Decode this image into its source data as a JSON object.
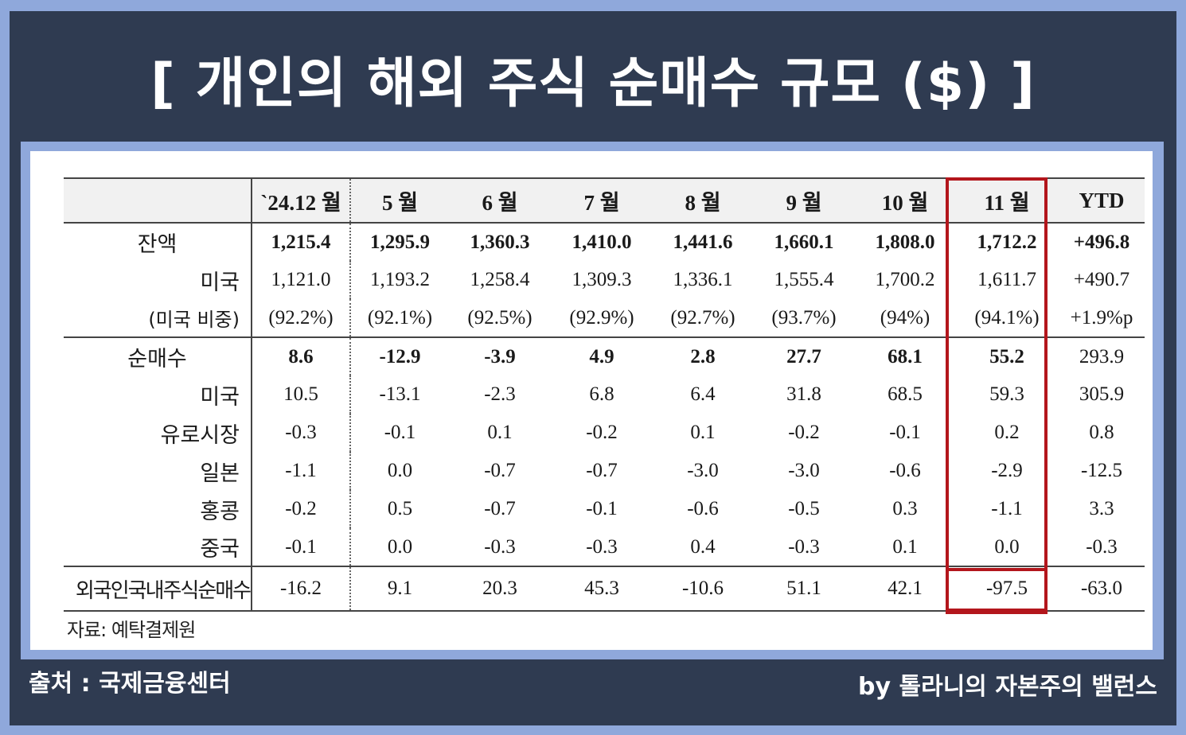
{
  "title": "[ 개인의 해외 주식 순매수 규모 ($) ]",
  "table": {
    "headers": [
      "",
      "`24.12 월",
      "5 월",
      "6 월",
      "7 월",
      "8 월",
      "9 월",
      "10 월",
      "11 월",
      "YTD"
    ],
    "rows": [
      {
        "label": "잔액",
        "style": "main",
        "values": [
          "1,215.4",
          "1,295.9",
          "1,360.3",
          "1,410.0",
          "1,441.6",
          "1,660.1",
          "1,808.0",
          "1,712.2",
          "+496.8"
        ]
      },
      {
        "label": "미국",
        "style": "sub",
        "values": [
          "1,121.0",
          "1,193.2",
          "1,258.4",
          "1,309.3",
          "1,336.1",
          "1,555.4",
          "1,700.2",
          "1,611.7",
          "+490.7"
        ]
      },
      {
        "label": "(미국 비중)",
        "style": "sub-small",
        "values": [
          "(92.2%)",
          "(92.1%)",
          "(92.5%)",
          "(92.9%)",
          "(92.7%)",
          "(93.7%)",
          "(94%)",
          "(94.1%)",
          "+1.9%p"
        ]
      },
      {
        "label": "순매수",
        "style": "main",
        "values": [
          "8.6",
          "-12.9",
          "-3.9",
          "4.9",
          "2.8",
          "27.7",
          "68.1",
          "55.2",
          "293.9"
        ]
      },
      {
        "label": "미국",
        "style": "sub",
        "values": [
          "10.5",
          "-13.1",
          "-2.3",
          "6.8",
          "6.4",
          "31.8",
          "68.5",
          "59.3",
          "305.9"
        ]
      },
      {
        "label": "유로시장",
        "style": "sub",
        "values": [
          "-0.3",
          "-0.1",
          "0.1",
          "-0.2",
          "0.1",
          "-0.2",
          "-0.1",
          "0.2",
          "0.8"
        ]
      },
      {
        "label": "일본",
        "style": "sub",
        "values": [
          "-1.1",
          "0.0",
          "-0.7",
          "-0.7",
          "-3.0",
          "-3.0",
          "-0.6",
          "-2.9",
          "-12.5"
        ]
      },
      {
        "label": "홍콩",
        "style": "sub",
        "values": [
          "-0.2",
          "0.5",
          "-0.7",
          "-0.1",
          "-0.6",
          "-0.5",
          "0.3",
          "-1.1",
          "3.3"
        ]
      },
      {
        "label": "중국",
        "style": "sub",
        "values": [
          "-0.1",
          "0.0",
          "-0.3",
          "-0.3",
          "0.4",
          "-0.3",
          "0.1",
          "0.0",
          "-0.3"
        ]
      },
      {
        "label": "외국인국내주식순매수",
        "style": "foreign",
        "values": [
          "-16.2",
          "9.1",
          "20.3",
          "45.3",
          "-10.6",
          "51.1",
          "42.1",
          "-97.5",
          "-63.0"
        ]
      }
    ]
  },
  "source_note": "자료: 예탁결제원",
  "footer": {
    "left": "출처 : 국제금융센터",
    "right": "by 톨라니의 자본주의 밸런스"
  },
  "colors": {
    "background": "#2f3b51",
    "border": "#8fa8db",
    "highlight": "#b3161c"
  }
}
